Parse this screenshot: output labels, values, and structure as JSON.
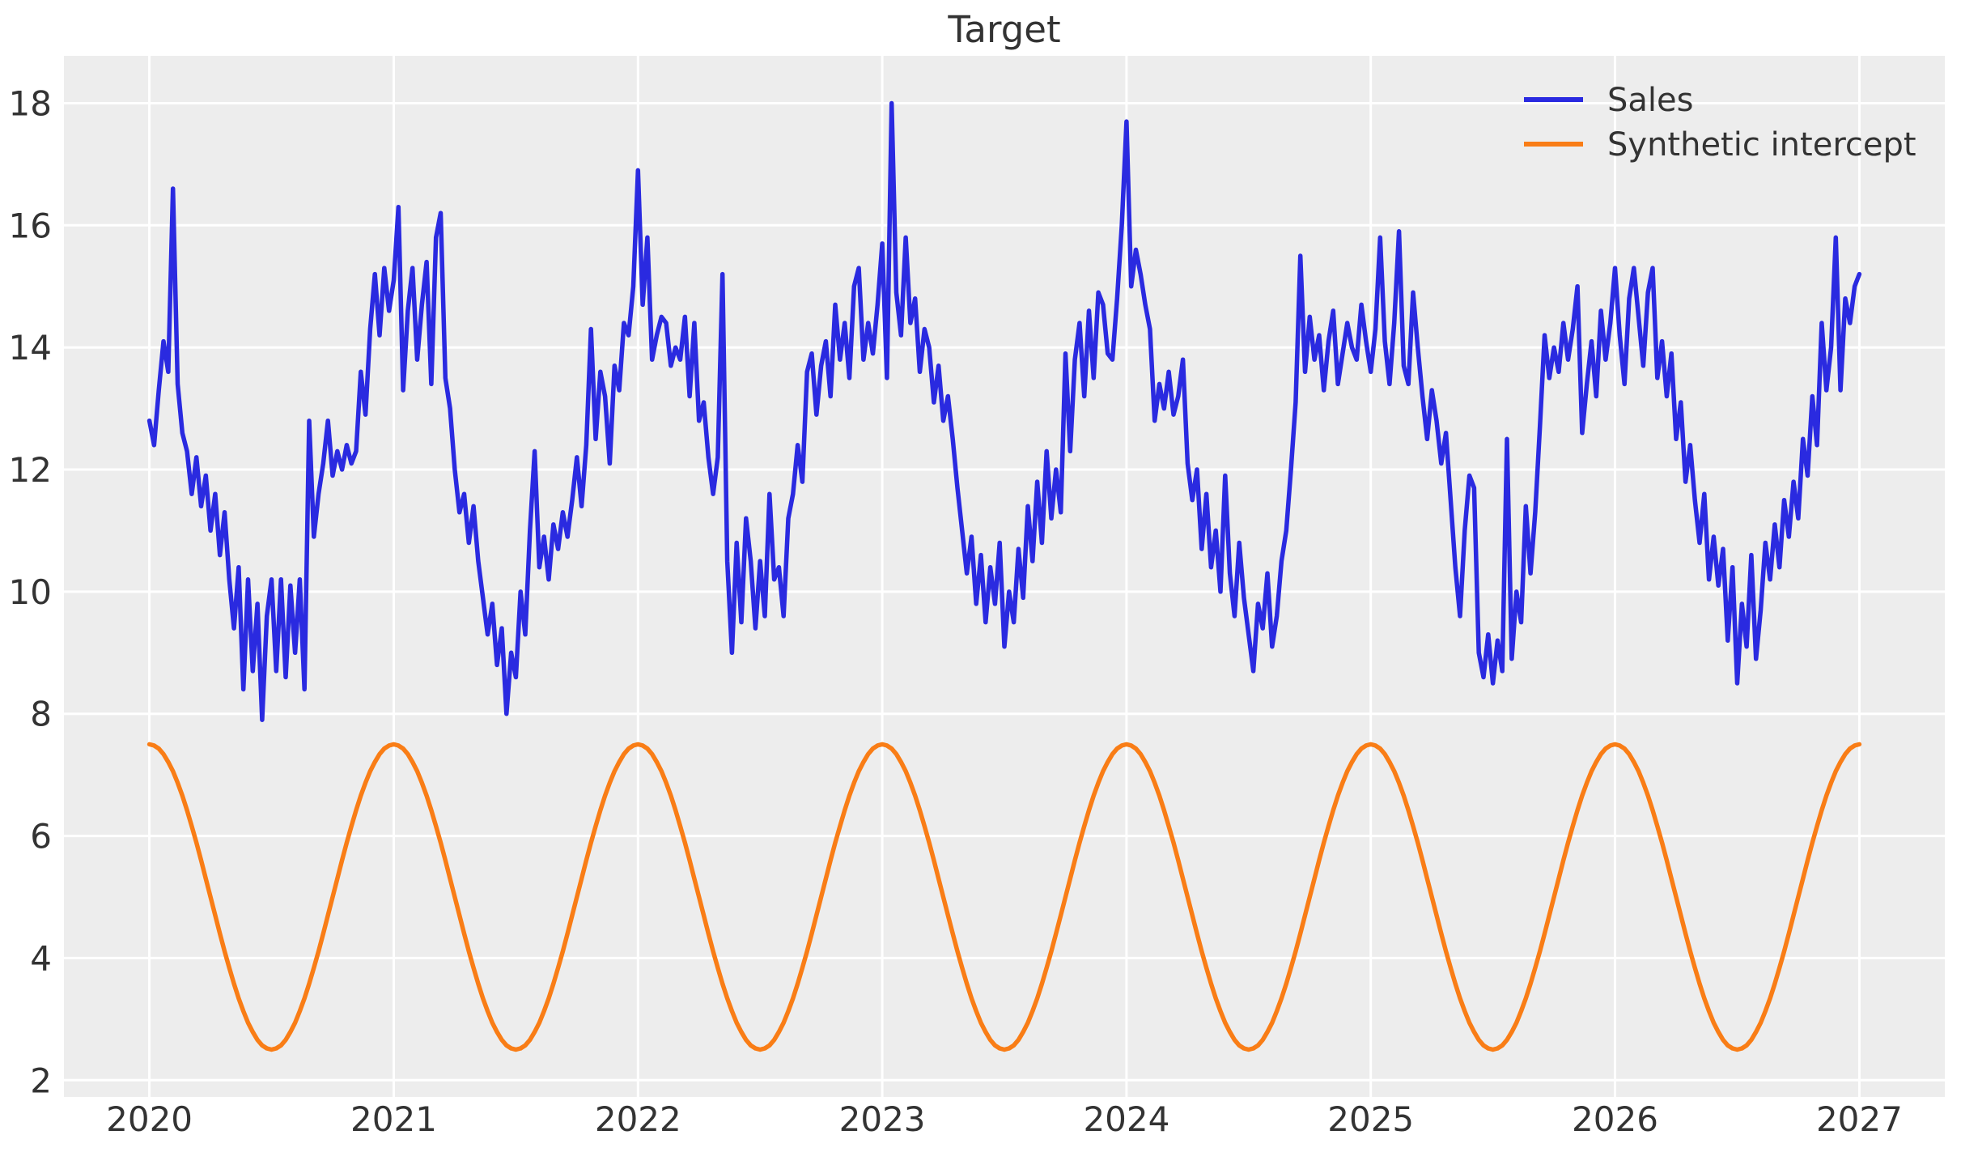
{
  "title": "Target",
  "colors": {
    "figure_background": "#ffffff",
    "plot_background": "#ededed",
    "grid": "#ffffff",
    "text": "#333333",
    "sales": "#2a2ae0",
    "synthetic_intercept": "#f97d16"
  },
  "chart_data": {
    "type": "line",
    "title": "Target",
    "xlabel": "",
    "ylabel": "",
    "grid": true,
    "legend": {
      "position": "upper-right",
      "entries": [
        "Sales",
        "Synthetic intercept"
      ]
    },
    "x_axis": {
      "ticks": [
        2020,
        2021,
        2022,
        2023,
        2024,
        2025,
        2026,
        2027
      ],
      "range": [
        2019.65,
        2027.35
      ]
    },
    "y_axis": {
      "ticks": [
        2,
        4,
        6,
        8,
        10,
        12,
        14,
        16,
        18
      ],
      "range": [
        1.725,
        18.775
      ]
    },
    "x_start": 2020,
    "x_step": 0.0192307692307692,
    "series": [
      {
        "name": "Sales",
        "color": "#2a2ae0",
        "values": [
          12.8,
          12.4,
          13.3,
          14.1,
          13.6,
          16.6,
          13.4,
          12.6,
          12.3,
          11.6,
          12.2,
          11.4,
          11.9,
          11.0,
          11.6,
          10.6,
          11.3,
          10.2,
          9.4,
          10.4,
          8.4,
          10.2,
          8.7,
          9.8,
          7.9,
          9.6,
          10.2,
          8.7,
          10.2,
          8.6,
          10.1,
          9.0,
          10.2,
          8.4,
          12.8,
          10.9,
          11.6,
          12.1,
          12.8,
          11.9,
          12.3,
          12.0,
          12.4,
          12.1,
          12.3,
          13.6,
          12.9,
          14.3,
          15.2,
          14.2,
          15.3,
          14.6,
          15.1,
          16.3,
          13.3,
          14.6,
          15.3,
          13.8,
          14.7,
          15.4,
          13.4,
          15.8,
          16.2,
          13.5,
          13.0,
          12.0,
          11.3,
          11.6,
          10.8,
          11.4,
          10.5,
          9.9,
          9.3,
          9.8,
          8.8,
          9.4,
          8.0,
          9.0,
          8.6,
          10.0,
          9.3,
          11.0,
          12.3,
          10.4,
          10.9,
          10.2,
          11.1,
          10.7,
          11.3,
          10.9,
          11.5,
          12.2,
          11.4,
          12.4,
          14.3,
          12.5,
          13.6,
          13.2,
          12.1,
          13.7,
          13.3,
          14.4,
          14.2,
          15.0,
          16.9,
          14.7,
          15.8,
          13.8,
          14.2,
          14.5,
          14.4,
          13.7,
          14.0,
          13.8,
          14.5,
          13.2,
          14.4,
          12.8,
          13.1,
          12.2,
          11.6,
          12.2,
          15.2,
          10.5,
          9.0,
          10.8,
          9.5,
          11.2,
          10.5,
          9.4,
          10.5,
          9.6,
          11.6,
          10.2,
          10.4,
          9.6,
          11.2,
          11.6,
          12.4,
          11.8,
          13.6,
          13.9,
          12.9,
          13.7,
          14.1,
          13.2,
          14.7,
          13.8,
          14.4,
          13.5,
          15.0,
          15.3,
          13.8,
          14.4,
          13.9,
          14.7,
          15.7,
          13.5,
          18.0,
          14.9,
          14.2,
          15.8,
          14.4,
          14.8,
          13.6,
          14.3,
          14.0,
          13.1,
          13.7,
          12.8,
          13.2,
          12.5,
          11.7,
          11.0,
          10.3,
          10.9,
          9.8,
          10.6,
          9.5,
          10.4,
          9.8,
          10.8,
          9.1,
          10.0,
          9.5,
          10.7,
          9.9,
          11.4,
          10.5,
          11.8,
          10.8,
          12.3,
          11.2,
          12.0,
          11.3,
          13.9,
          12.3,
          13.8,
          14.4,
          13.2,
          14.6,
          13.5,
          14.9,
          14.7,
          13.9,
          13.8,
          14.8,
          16.0,
          17.7,
          15.0,
          15.6,
          15.2,
          14.7,
          14.3,
          12.8,
          13.4,
          13.0,
          13.6,
          12.9,
          13.2,
          13.8,
          12.1,
          11.5,
          12.0,
          10.7,
          11.6,
          10.4,
          11.0,
          10.0,
          11.9,
          10.3,
          9.6,
          10.8,
          9.9,
          9.3,
          8.7,
          9.8,
          9.4,
          10.3,
          9.1,
          9.6,
          10.5,
          11.0,
          12.0,
          13.1,
          15.5,
          13.6,
          14.5,
          13.8,
          14.2,
          13.3,
          14.1,
          14.6,
          13.4,
          13.9,
          14.4,
          14.0,
          13.8,
          14.7,
          14.1,
          13.6,
          14.3,
          15.8,
          14.1,
          13.4,
          14.4,
          15.9,
          13.7,
          13.4,
          14.9,
          14.0,
          13.2,
          12.5,
          13.3,
          12.8,
          12.1,
          12.6,
          11.5,
          10.4,
          9.6,
          11.0,
          11.9,
          11.7,
          9.0,
          8.6,
          9.3,
          8.5,
          9.2,
          8.7,
          12.5,
          8.9,
          10.0,
          9.5,
          11.4,
          10.3,
          11.3,
          12.7,
          14.2,
          13.5,
          14.0,
          13.6,
          14.4,
          13.8,
          14.3,
          15.0,
          12.6,
          13.4,
          14.1,
          13.2,
          14.6,
          13.8,
          14.4,
          15.3,
          14.2,
          13.4,
          14.8,
          15.3,
          14.5,
          13.7,
          14.9,
          15.3,
          13.5,
          14.1,
          13.2,
          13.9,
          12.5,
          13.1,
          11.8,
          12.4,
          11.5,
          10.8,
          11.6,
          10.2,
          10.9,
          10.1,
          10.7,
          9.2,
          10.4,
          8.5,
          9.8,
          9.1,
          10.6,
          8.9,
          9.7,
          10.8,
          10.2,
          11.1,
          10.4,
          11.5,
          10.9,
          11.8,
          11.2,
          12.5,
          11.9,
          13.2,
          12.4,
          14.4,
          13.3,
          14.0,
          15.8,
          13.3,
          14.8,
          14.4,
          15.0,
          15.2
        ]
      },
      {
        "name": "Synthetic intercept",
        "color": "#f97d16",
        "n_points": 365,
        "period_years": 1,
        "min": 2.5,
        "max": 7.5,
        "period_values": [
          7.5,
          7.48,
          7.43,
          7.34,
          7.21,
          7.06,
          6.87,
          6.66,
          6.42,
          6.16,
          5.89,
          5.6,
          5.3,
          5.0,
          4.7,
          4.4,
          4.11,
          3.84,
          3.58,
          3.34,
          3.13,
          2.94,
          2.79,
          2.66,
          2.57,
          2.52,
          2.5,
          2.52,
          2.57,
          2.66,
          2.79,
          2.94,
          3.13,
          3.34,
          3.58,
          3.84,
          4.11,
          4.4,
          4.7,
          5.0,
          5.3,
          5.6,
          5.89,
          6.16,
          6.42,
          6.66,
          6.87,
          7.06,
          7.21,
          7.34,
          7.43,
          7.48
        ]
      }
    ]
  }
}
